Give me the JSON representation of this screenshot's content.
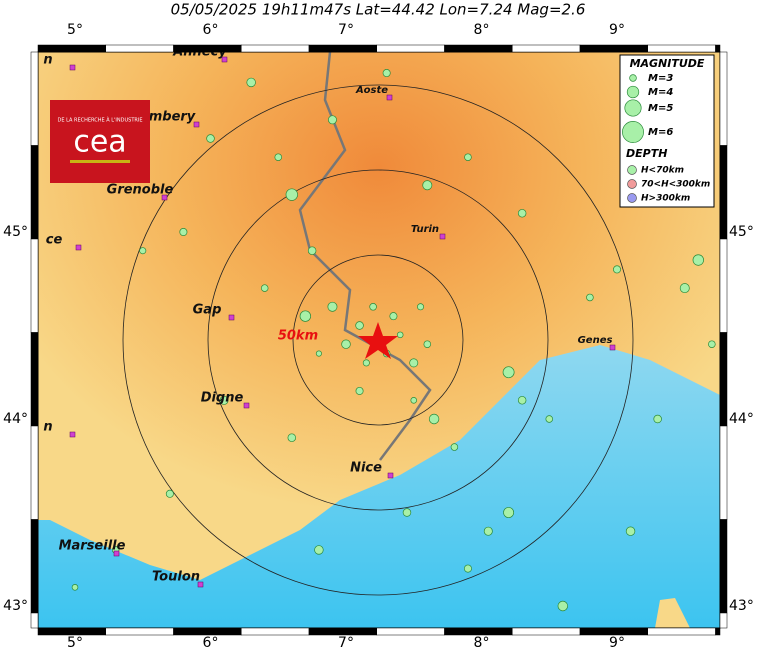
{
  "title": "05/05/2025 19h11m47s  Lat=44.42  Lon=7.24  Mag=2.6",
  "lon_ticks": [
    {
      "value": 5,
      "label": "5°"
    },
    {
      "value": 6,
      "label": "6°"
    },
    {
      "value": 7,
      "label": "7°"
    },
    {
      "value": 8,
      "label": "8°"
    },
    {
      "value": 9,
      "label": "9°"
    }
  ],
  "lat_ticks": [
    {
      "value": 45,
      "label": "45°"
    },
    {
      "value": 44,
      "label": "44°"
    },
    {
      "value": 43,
      "label": "43°"
    }
  ],
  "cities": [
    "Annecy",
    "Aoste",
    "mbery",
    "Grenoble",
    "Turin",
    "Gap",
    "Genes",
    "Digne",
    "Nice",
    "Marseille",
    "Toulon",
    "ce",
    "n",
    "n"
  ],
  "distance_label": "50km",
  "logo": {
    "tagline": "DE LA RECHERCHE À L'INDUSTRIE",
    "name": "cea"
  },
  "legend": {
    "magnitude_title": "MAGNITUDE",
    "magnitudes": [
      {
        "mag": 3,
        "label": "M=3"
      },
      {
        "mag": 4,
        "label": "M=4"
      },
      {
        "mag": 5,
        "label": "M=5"
      },
      {
        "mag": 6,
        "label": "M=6"
      }
    ],
    "depth_title": "DEPTH",
    "depths": [
      {
        "label": "H<70km",
        "color": "#a8f0a8"
      },
      {
        "label": "70<H<300km",
        "color": "#f09a9a"
      },
      {
        "label": "H>300km",
        "color": "#9a9af0"
      }
    ]
  },
  "events": [
    [
      7.1,
      44.5,
      3.2
    ],
    [
      7.3,
      44.35,
      3.0
    ],
    [
      7.4,
      44.45,
      2.8
    ],
    [
      7.0,
      44.4,
      3.4
    ],
    [
      7.15,
      44.3,
      2.9
    ],
    [
      7.35,
      44.55,
      3.1
    ],
    [
      6.9,
      44.6,
      3.5
    ],
    [
      7.2,
      44.6,
      3.0
    ],
    [
      6.8,
      44.35,
      2.7
    ],
    [
      7.5,
      44.3,
      3.3
    ],
    [
      6.7,
      44.55,
      3.8
    ],
    [
      6.75,
      44.9,
      3.2
    ],
    [
      7.55,
      44.6,
      2.9
    ],
    [
      7.6,
      44.4,
      3.0
    ],
    [
      7.1,
      44.15,
      3.1
    ],
    [
      7.5,
      44.1,
      2.8
    ],
    [
      7.65,
      44.0,
      3.6
    ],
    [
      7.8,
      43.85,
      3.0
    ],
    [
      8.2,
      44.25,
      3.9
    ],
    [
      8.3,
      44.1,
      3.2
    ],
    [
      8.5,
      44.0,
      3.0
    ],
    [
      9.1,
      43.4,
      3.4
    ],
    [
      8.2,
      43.5,
      3.7
    ],
    [
      7.9,
      43.2,
      3.1
    ],
    [
      8.6,
      43.0,
      3.6
    ],
    [
      9.5,
      44.7,
      3.5
    ],
    [
      9.7,
      44.4,
      3.0
    ],
    [
      9.6,
      44.85,
      3.8
    ],
    [
      9.0,
      44.8,
      3.1
    ],
    [
      8.8,
      44.65,
      3.0
    ],
    [
      6.3,
      45.8,
      3.4
    ],
    [
      6.9,
      45.6,
      3.3
    ],
    [
      6.5,
      45.4,
      3.0
    ],
    [
      6.0,
      45.5,
      3.2
    ],
    [
      5.8,
      45.0,
      3.1
    ],
    [
      5.5,
      44.9,
      2.9
    ],
    [
      6.4,
      44.7,
      3.0
    ],
    [
      6.1,
      44.1,
      3.3
    ],
    [
      6.6,
      43.9,
      3.2
    ],
    [
      5.3,
      43.3,
      3.0
    ],
    [
      5.0,
      43.1,
      2.8
    ],
    [
      5.7,
      43.6,
      3.1
    ],
    [
      6.8,
      43.3,
      3.4
    ],
    [
      7.6,
      45.25,
      3.5
    ],
    [
      7.9,
      45.4,
      3.0
    ],
    [
      8.3,
      45.1,
      3.2
    ],
    [
      7.3,
      45.85,
      3.1
    ],
    [
      6.6,
      45.2,
      4.0
    ],
    [
      9.3,
      44.0,
      3.2
    ],
    [
      8.05,
      43.4,
      3.3
    ],
    [
      7.45,
      43.5,
      3.2
    ]
  ]
}
